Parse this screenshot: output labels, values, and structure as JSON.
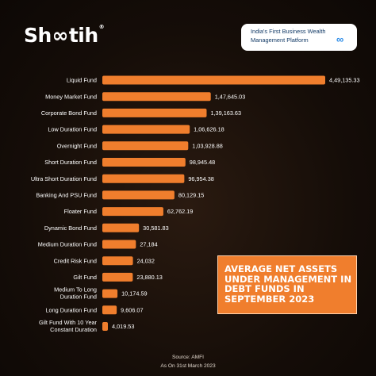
{
  "brand": {
    "name_prefix": "Sh",
    "name_suffix": "tih",
    "mark": "®"
  },
  "tagline": {
    "line1": "India's First Business Wealth",
    "line2": "Management Platform",
    "logo": "∞"
  },
  "callout": {
    "title": "AVERAGE NET ASSETS UNDER MANAGEMENT IN DEBT FUNDS IN SEPTEMBER 2023"
  },
  "source": {
    "line1": "Source: AMFI",
    "line2": "As On 31st March 2023"
  },
  "colors": {
    "bar": "#f07e2d",
    "bar_light": "#f5a35e",
    "callout": "#f07e2d",
    "tagline_text": "#123a66"
  },
  "chart_data": {
    "type": "bar",
    "orientation": "horizontal",
    "title": "",
    "categories": [
      [
        "Liquid Fund"
      ],
      [
        "Money Market Fund"
      ],
      [
        "Corporate Bond Fund"
      ],
      [
        "Low Duration Fund"
      ],
      [
        "Overnight Fund"
      ],
      [
        "Short Duration Fund"
      ],
      [
        "Ultra Short Duration Fund"
      ],
      [
        "Banking And PSU Fund"
      ],
      [
        "Floater Fund"
      ],
      [
        "Dynamic Bond Fund"
      ],
      [
        "Medium Duration Fund"
      ],
      [
        "Credit Risk Fund"
      ],
      [
        "Gilt Fund"
      ],
      [
        "Medium To Long",
        "Duration Fund"
      ],
      [
        "Long Duration Fund"
      ],
      [
        "Gilt Fund With 10 Year",
        "Constant Duration"
      ]
    ],
    "values": [
      449135.33,
      147645.03,
      139163.63,
      106626.18,
      103928.88,
      98945.48,
      96954.38,
      80129.15,
      62762.19,
      30581.83,
      27184,
      24032,
      23880.13,
      10174.59,
      9606.07,
      4019.53
    ],
    "value_labels": [
      "4,49,135.33",
      "1,47,645.03",
      "1,39,163.63",
      "1,06,626.18",
      "1,03,928.88",
      "98,945.48",
      "96,954.38",
      "80,129.15",
      "62,762.19",
      "30,581.83",
      "27,184",
      "24,032",
      "23,880.13",
      "10,174.59",
      "9,606.07",
      "4,019.53"
    ],
    "axis_scale": "non-linear",
    "legend": "none"
  }
}
